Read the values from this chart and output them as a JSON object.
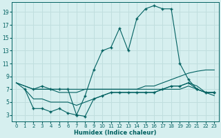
{
  "title": "",
  "xlabel": "Humidex (Indice chaleur)",
  "ylabel": "",
  "background_color": "#d6efef",
  "grid_color": "#c0dede",
  "line_color": "#006060",
  "xlim": [
    -0.5,
    23.5
  ],
  "ylim": [
    2,
    20.5
  ],
  "xticks": [
    0,
    1,
    2,
    3,
    4,
    5,
    6,
    7,
    8,
    9,
    10,
    11,
    12,
    13,
    14,
    15,
    16,
    17,
    18,
    19,
    20,
    21,
    22,
    23
  ],
  "yticks": [
    3,
    5,
    7,
    9,
    11,
    13,
    15,
    17,
    19
  ],
  "line1_x": [
    0,
    1,
    2,
    3,
    4,
    5,
    6,
    7,
    8,
    9,
    10,
    11,
    12,
    13,
    14,
    15,
    16,
    17,
    18,
    19,
    20,
    21,
    22,
    23
  ],
  "line1_y": [
    8,
    7.5,
    7,
    7,
    7,
    7,
    7,
    7,
    7,
    7,
    7,
    7,
    7,
    7,
    7,
    7.5,
    7.5,
    8,
    8.5,
    9,
    9.5,
    9.8,
    10,
    10
  ],
  "line2_x": [
    0,
    1,
    2,
    3,
    4,
    5,
    6,
    7,
    8,
    9,
    10,
    11,
    12,
    13,
    14,
    15,
    16,
    17,
    18,
    19,
    20,
    21,
    22,
    23
  ],
  "line2_y": [
    8,
    7.5,
    7,
    7,
    7,
    6.5,
    6.5,
    6.5,
    7,
    7,
    7,
    7,
    7,
    7,
    7,
    7,
    7,
    7,
    7.5,
    7.5,
    8,
    7.5,
    6.5,
    6.5
  ],
  "line3_x": [
    0,
    1,
    2,
    3,
    4,
    5,
    6,
    7,
    8,
    9,
    10,
    11,
    12,
    13,
    14,
    15,
    16,
    17,
    18,
    19,
    20,
    21,
    22,
    23
  ],
  "line3_y": [
    8,
    7,
    5.5,
    5.5,
    5,
    5,
    5,
    4.5,
    5,
    5.5,
    6,
    6.5,
    6.5,
    6.5,
    6.5,
    6.5,
    6.5,
    7,
    7,
    7,
    7.5,
    7,
    6.5,
    6
  ],
  "line4_x": [
    1,
    2,
    3,
    4,
    5,
    6,
    7,
    8,
    9,
    10,
    11,
    12,
    13,
    14,
    15,
    16,
    17,
    18,
    19,
    20,
    21,
    22,
    23
  ],
  "line4_y": [
    7,
    4,
    4,
    3.5,
    4,
    3.3,
    3,
    2.8,
    5.5,
    6,
    6.5,
    6.5,
    6.5,
    6.5,
    6.5,
    6.5,
    7,
    7.5,
    7.5,
    8,
    7,
    6.5,
    6.5
  ],
  "line5_x": [
    2,
    3,
    4,
    5,
    6,
    7,
    8,
    9,
    10,
    11,
    12,
    13,
    14,
    15,
    16,
    17,
    18,
    19,
    20,
    21,
    22,
    23
  ],
  "line5_y": [
    7,
    7.5,
    7,
    7,
    7,
    3,
    6,
    10,
    13,
    13.5,
    16.5,
    13,
    18,
    19.5,
    20,
    19.5,
    19.5,
    11,
    8.5,
    7,
    6.5,
    6.5
  ],
  "marker": "+"
}
